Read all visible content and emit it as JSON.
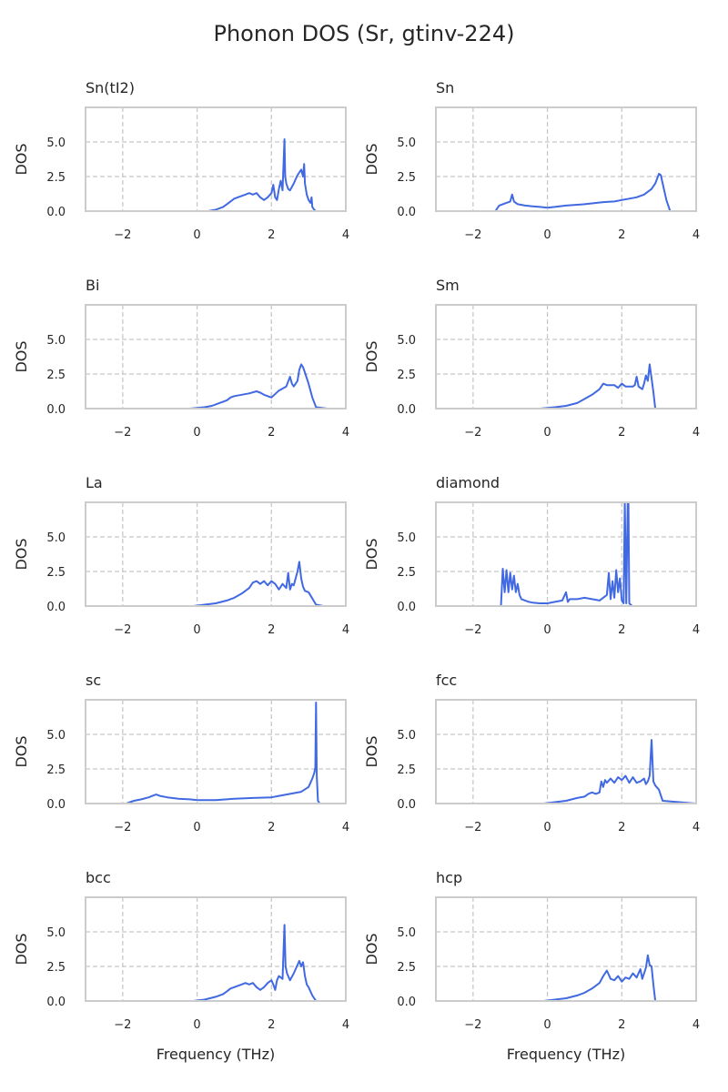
{
  "title": "Phonon DOS (Sr, gtinv-224)",
  "colors": {
    "line": "#4169e1",
    "frame": "#cccccc",
    "grid": "#c8c8c8",
    "text": "#262626"
  },
  "chart_data": [
    {
      "type": "line",
      "title": "Sn(tI2)",
      "xlabel": "",
      "ylabel": "DOS",
      "xlim": [
        -3,
        4
      ],
      "ylim": [
        0,
        7.5
      ],
      "xticks": [
        -2,
        0,
        2,
        4
      ],
      "yticks": [
        0.0,
        2.5,
        5.0
      ],
      "grid": true,
      "grid_style": "dashed",
      "x": [
        -3.0,
        0.3,
        0.5,
        0.7,
        0.8,
        0.9,
        1.0,
        1.1,
        1.2,
        1.3,
        1.4,
        1.5,
        1.6,
        1.7,
        1.8,
        1.9,
        2.0,
        2.05,
        2.1,
        2.15,
        2.2,
        2.25,
        2.3,
        2.35,
        2.37,
        2.4,
        2.45,
        2.5,
        2.6,
        2.7,
        2.8,
        2.85,
        2.88,
        2.9,
        2.95,
        3.0,
        3.05,
        3.08,
        3.1,
        3.15,
        3.2,
        4.0
      ],
      "y": [
        0,
        0,
        0.1,
        0.3,
        0.5,
        0.7,
        0.9,
        1.0,
        1.1,
        1.2,
        1.3,
        1.2,
        1.3,
        1.0,
        0.8,
        1.0,
        1.3,
        1.9,
        1.0,
        0.8,
        1.6,
        2.2,
        1.5,
        5.2,
        2.5,
        2.0,
        1.6,
        1.5,
        2.0,
        2.6,
        3.0,
        2.5,
        3.4,
        2.0,
        1.2,
        0.8,
        0.6,
        1.0,
        0.3,
        0.1,
        0,
        0
      ]
    },
    {
      "type": "line",
      "title": "Sn",
      "xlabel": "",
      "ylabel": "DOS",
      "xlim": [
        -3,
        4
      ],
      "ylim": [
        0,
        7.5
      ],
      "xticks": [
        -2,
        0,
        2,
        4
      ],
      "yticks": [
        0.0,
        2.5,
        5.0
      ],
      "grid": true,
      "grid_style": "dashed",
      "x": [
        -3.0,
        -1.4,
        -1.3,
        -1.2,
        -1.1,
        -1.0,
        -0.95,
        -0.9,
        -0.8,
        -0.6,
        -0.4,
        -0.2,
        0.0,
        0.2,
        0.5,
        1.0,
        1.5,
        1.8,
        2.0,
        2.2,
        2.4,
        2.6,
        2.8,
        2.9,
        3.0,
        3.05,
        3.1,
        3.2,
        3.3,
        4.0
      ],
      "y": [
        0,
        0,
        0.4,
        0.5,
        0.6,
        0.7,
        1.2,
        0.7,
        0.5,
        0.4,
        0.35,
        0.3,
        0.25,
        0.3,
        0.4,
        0.5,
        0.65,
        0.7,
        0.8,
        0.9,
        1.0,
        1.2,
        1.6,
        2.0,
        2.7,
        2.6,
        2.0,
        0.8,
        0,
        0
      ]
    },
    {
      "type": "line",
      "title": "Bi",
      "xlabel": "",
      "ylabel": "DOS",
      "xlim": [
        -3,
        4
      ],
      "ylim": [
        0,
        7.5
      ],
      "xticks": [
        -2,
        0,
        2,
        4
      ],
      "yticks": [
        0.0,
        2.5,
        5.0
      ],
      "grid": true,
      "grid_style": "dashed",
      "x": [
        -3.0,
        -0.2,
        0.2,
        0.4,
        0.6,
        0.8,
        0.9,
        1.0,
        1.2,
        1.4,
        1.6,
        1.7,
        1.8,
        1.9,
        2.0,
        2.2,
        2.4,
        2.5,
        2.55,
        2.6,
        2.7,
        2.75,
        2.8,
        2.85,
        2.9,
        3.0,
        3.1,
        3.2,
        3.5,
        4.0
      ],
      "y": [
        0,
        0,
        0.1,
        0.2,
        0.4,
        0.6,
        0.8,
        0.9,
        1.0,
        1.1,
        1.25,
        1.15,
        1.0,
        0.9,
        0.8,
        1.3,
        1.6,
        2.3,
        1.8,
        1.6,
        2.0,
        2.8,
        3.2,
        3.0,
        2.6,
        1.8,
        0.8,
        0.1,
        0,
        0
      ]
    },
    {
      "type": "line",
      "title": "Sm",
      "xlabel": "",
      "ylabel": "DOS",
      "xlim": [
        -3,
        4
      ],
      "ylim": [
        0,
        7.5
      ],
      "xticks": [
        -2,
        0,
        2,
        4
      ],
      "yticks": [
        0.0,
        2.5,
        5.0
      ],
      "grid": true,
      "grid_style": "dashed",
      "x": [
        -3.0,
        -0.2,
        0.2,
        0.5,
        0.8,
        1.0,
        1.2,
        1.4,
        1.5,
        1.6,
        1.8,
        1.9,
        2.0,
        2.1,
        2.2,
        2.3,
        2.35,
        2.4,
        2.45,
        2.5,
        2.55,
        2.6,
        2.65,
        2.7,
        2.75,
        2.8,
        2.85,
        2.9,
        3.0,
        4.0
      ],
      "y": [
        0,
        0,
        0.1,
        0.2,
        0.4,
        0.7,
        1.0,
        1.4,
        1.8,
        1.7,
        1.7,
        1.5,
        1.8,
        1.6,
        1.6,
        1.6,
        1.7,
        2.3,
        1.6,
        1.5,
        1.4,
        1.8,
        2.4,
        2.0,
        3.2,
        2.2,
        1.2,
        0,
        0,
        0
      ]
    },
    {
      "type": "line",
      "title": "La",
      "xlabel": "",
      "ylabel": "DOS",
      "xlim": [
        -3,
        4
      ],
      "ylim": [
        0,
        7.5
      ],
      "xticks": [
        -2,
        0,
        2,
        4
      ],
      "yticks": [
        0.0,
        2.5,
        5.0
      ],
      "grid": true,
      "grid_style": "dashed",
      "x": [
        -3.0,
        -0.1,
        0.2,
        0.5,
        0.8,
        1.0,
        1.2,
        1.4,
        1.5,
        1.6,
        1.7,
        1.8,
        1.9,
        2.0,
        2.1,
        2.2,
        2.3,
        2.4,
        2.45,
        2.5,
        2.55,
        2.6,
        2.7,
        2.75,
        2.8,
        2.85,
        2.9,
        3.0,
        3.2,
        3.4,
        4.0
      ],
      "y": [
        0,
        0,
        0.1,
        0.2,
        0.4,
        0.6,
        0.9,
        1.3,
        1.7,
        1.8,
        1.6,
        1.8,
        1.5,
        1.8,
        1.6,
        1.2,
        1.6,
        1.3,
        2.4,
        1.2,
        1.6,
        1.5,
        2.5,
        3.2,
        2.0,
        1.4,
        1.1,
        1.0,
        0.1,
        0,
        0
      ]
    },
    {
      "type": "line",
      "title": "diamond",
      "xlabel": "",
      "ylabel": "DOS",
      "xlim": [
        -3,
        4
      ],
      "ylim": [
        0,
        7.5
      ],
      "xticks": [
        -2,
        0,
        2,
        4
      ],
      "yticks": [
        0.0,
        2.5,
        5.0
      ],
      "grid": true,
      "grid_style": "dashed",
      "x": [
        -3.0,
        -1.25,
        -1.2,
        -1.15,
        -1.1,
        -1.05,
        -1.0,
        -0.95,
        -0.9,
        -0.85,
        -0.8,
        -0.75,
        -0.7,
        -0.6,
        -0.5,
        -0.4,
        -0.2,
        0.0,
        0.2,
        0.4,
        0.5,
        0.55,
        0.6,
        0.8,
        1.0,
        1.2,
        1.4,
        1.6,
        1.65,
        1.7,
        1.75,
        1.8,
        1.85,
        1.9,
        1.95,
        2.0,
        2.05,
        2.08,
        2.12,
        2.16,
        2.18,
        2.2,
        2.24,
        2.28,
        2.35,
        2.6,
        4.0
      ],
      "y": [
        0,
        0,
        2.7,
        1.0,
        2.6,
        1.0,
        2.4,
        1.2,
        2.2,
        1.0,
        1.6,
        0.8,
        0.5,
        0.4,
        0.3,
        0.25,
        0.2,
        0.2,
        0.3,
        0.4,
        1.0,
        0.3,
        0.5,
        0.5,
        0.6,
        0.5,
        0.4,
        0.8,
        2.4,
        0.5,
        1.8,
        0.6,
        2.6,
        1.0,
        2.0,
        0.4,
        0.2,
        7.5,
        0.2,
        7.5,
        7.5,
        0.2,
        0.1,
        0,
        0,
        0,
        0
      ]
    },
    {
      "type": "line",
      "title": "sc",
      "xlabel": "",
      "ylabel": "DOS",
      "xlim": [
        -3,
        4
      ],
      "ylim": [
        0,
        7.5
      ],
      "xticks": [
        -2,
        0,
        2,
        4
      ],
      "yticks": [
        0.0,
        2.5,
        5.0
      ],
      "grid": true,
      "grid_style": "dashed",
      "x": [
        -3.0,
        -1.9,
        -1.7,
        -1.5,
        -1.3,
        -1.2,
        -1.1,
        -1.0,
        -0.8,
        -0.5,
        -0.2,
        0.0,
        0.5,
        0.8,
        1.0,
        1.5,
        2.0,
        2.2,
        2.5,
        2.8,
        3.0,
        3.1,
        3.15,
        3.18,
        3.2,
        3.22,
        3.25,
        3.3,
        4.0
      ],
      "y": [
        0,
        0,
        0.2,
        0.3,
        0.45,
        0.55,
        0.65,
        0.55,
        0.45,
        0.35,
        0.3,
        0.25,
        0.25,
        0.3,
        0.35,
        0.4,
        0.45,
        0.55,
        0.7,
        0.85,
        1.2,
        1.8,
        2.2,
        2.6,
        7.3,
        2.0,
        0.2,
        0,
        0
      ]
    },
    {
      "type": "line",
      "title": "fcc",
      "xlabel": "",
      "ylabel": "DOS",
      "xlim": [
        -3,
        4
      ],
      "ylim": [
        0,
        7.5
      ],
      "xticks": [
        -2,
        0,
        2,
        4
      ],
      "yticks": [
        0.0,
        2.5,
        5.0
      ],
      "grid": true,
      "grid_style": "dashed",
      "x": [
        -3.0,
        -0.1,
        0.2,
        0.5,
        0.8,
        1.0,
        1.1,
        1.2,
        1.3,
        1.4,
        1.45,
        1.5,
        1.55,
        1.6,
        1.7,
        1.8,
        1.9,
        2.0,
        2.1,
        2.2,
        2.3,
        2.4,
        2.5,
        2.6,
        2.65,
        2.7,
        2.75,
        2.8,
        2.85,
        2.9,
        3.0,
        3.1,
        4.0
      ],
      "y": [
        0,
        0,
        0.1,
        0.2,
        0.4,
        0.5,
        0.7,
        0.8,
        0.7,
        0.8,
        1.6,
        1.2,
        1.7,
        1.5,
        1.8,
        1.5,
        1.9,
        1.7,
        2.0,
        1.5,
        1.9,
        1.5,
        1.6,
        1.8,
        1.4,
        1.6,
        2.0,
        4.6,
        1.6,
        1.3,
        1.0,
        0.2,
        0
      ]
    },
    {
      "type": "line",
      "title": "bcc",
      "xlabel": "Frequency (THz)",
      "ylabel": "DOS",
      "xlim": [
        -3,
        4
      ],
      "ylim": [
        0,
        7.5
      ],
      "xticks": [
        -2,
        0,
        2,
        4
      ],
      "yticks": [
        0.0,
        2.5,
        5.0
      ],
      "grid": true,
      "grid_style": "dashed",
      "x": [
        -3.0,
        -0.1,
        0.2,
        0.5,
        0.7,
        0.8,
        0.9,
        1.0,
        1.1,
        1.2,
        1.3,
        1.4,
        1.5,
        1.6,
        1.7,
        1.8,
        1.9,
        2.0,
        2.05,
        2.1,
        2.15,
        2.2,
        2.3,
        2.35,
        2.38,
        2.42,
        2.5,
        2.6,
        2.7,
        2.75,
        2.8,
        2.85,
        2.9,
        2.95,
        3.0,
        3.1,
        3.2,
        4.0
      ],
      "y": [
        0,
        0,
        0.1,
        0.3,
        0.5,
        0.7,
        0.9,
        1.0,
        1.1,
        1.2,
        1.3,
        1.2,
        1.3,
        1.0,
        0.8,
        1.0,
        1.3,
        1.5,
        1.2,
        0.8,
        1.5,
        1.8,
        1.6,
        5.5,
        2.5,
        2.0,
        1.5,
        2.0,
        2.6,
        2.9,
        2.5,
        2.8,
        1.8,
        1.2,
        1.0,
        0.4,
        0,
        0
      ]
    },
    {
      "type": "line",
      "title": "hcp",
      "xlabel": "Frequency (THz)",
      "ylabel": "DOS",
      "xlim": [
        -3,
        4
      ],
      "ylim": [
        0,
        7.5
      ],
      "xticks": [
        -2,
        0,
        2,
        4
      ],
      "yticks": [
        0.0,
        2.5,
        5.0
      ],
      "grid": true,
      "grid_style": "dashed",
      "x": [
        -3.0,
        -0.1,
        0.2,
        0.5,
        0.8,
        1.0,
        1.2,
        1.4,
        1.5,
        1.55,
        1.6,
        1.7,
        1.8,
        1.9,
        2.0,
        2.1,
        2.2,
        2.3,
        2.4,
        2.5,
        2.55,
        2.6,
        2.65,
        2.7,
        2.75,
        2.8,
        2.85,
        2.9,
        3.0,
        3.3,
        4.0
      ],
      "y": [
        0,
        0,
        0.1,
        0.2,
        0.4,
        0.6,
        0.9,
        1.3,
        1.8,
        2.0,
        2.2,
        1.6,
        1.5,
        1.8,
        1.4,
        1.7,
        1.6,
        2.0,
        1.7,
        2.3,
        1.6,
        2.0,
        2.4,
        3.3,
        2.6,
        2.5,
        1.2,
        0,
        0,
        0,
        0
      ]
    }
  ]
}
